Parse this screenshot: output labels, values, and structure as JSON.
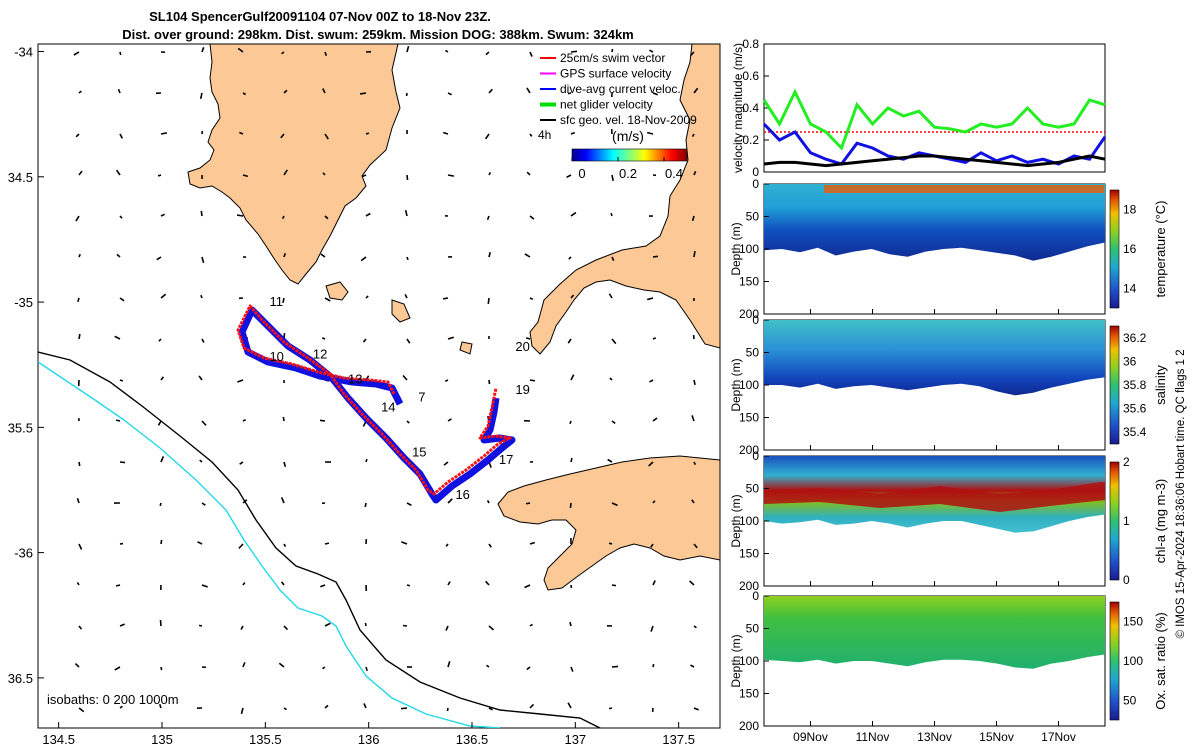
{
  "title": {
    "line1": "SL104 SpencerGulf20091104 07-Nov 00Z to 18-Nov 23Z.",
    "line2": "Dist. over ground: 298km. Dist. swum: 259km. Mission DOG: 388km. Swum: 324km"
  },
  "map": {
    "lon_ticks": [
      "134.5",
      "135",
      "135.5",
      "136",
      "136.5",
      "137",
      "137.5"
    ],
    "lat_ticks": [
      "-34",
      "34.5",
      "-35",
      "35.5",
      "-36",
      "36.5"
    ],
    "lon_range": [
      134.4,
      137.7
    ],
    "lat_range": [
      -36.7,
      -33.97
    ],
    "legend": [
      {
        "label": "25cm/s swim vector",
        "color": "#ff0000"
      },
      {
        "label": "GPS surface velocity",
        "color": "#ff00ff"
      },
      {
        "label": "dive-avg current veloc.",
        "color": "#0000ff"
      },
      {
        "label": "net glider velocity",
        "color": "#00dd00"
      },
      {
        "label": "sfc geo. vel. 18-Nov-2009",
        "color": "#000000"
      }
    ],
    "legend_extra": "4h",
    "colorbar": {
      "label": "(m/s)",
      "ticks": [
        "0",
        "0.2",
        "0.4"
      ],
      "range": [
        0,
        0.5
      ]
    },
    "isobaths": "isobaths: 0   200  1000m",
    "day_labels": [
      {
        "day": "7",
        "lon": 136.24,
        "lat": -35.38
      },
      {
        "day": "10",
        "lon": 135.52,
        "lat": -35.22
      },
      {
        "day": "11",
        "lon": 135.52,
        "lat": -35.0
      },
      {
        "day": "12",
        "lon": 135.73,
        "lat": -35.21
      },
      {
        "day": "13",
        "lon": 135.9,
        "lat": -35.31
      },
      {
        "day": "14",
        "lon": 136.06,
        "lat": -35.42
      },
      {
        "day": "15",
        "lon": 136.21,
        "lat": -35.6
      },
      {
        "day": "16",
        "lon": 136.42,
        "lat": -35.77
      },
      {
        "day": "17",
        "lon": 136.63,
        "lat": -35.63
      },
      {
        "day": "19",
        "lon": 136.71,
        "lat": -35.35
      },
      {
        "day": "20",
        "lon": 136.71,
        "lat": -35.18
      }
    ]
  },
  "right_panels": {
    "velocity": {
      "ylabel": "velocity magnitude (m/s)",
      "yticks": [
        "0",
        "0.2",
        "0.4",
        "0.6",
        "0.8"
      ],
      "ylim": [
        0,
        0.8
      ]
    },
    "temperature": {
      "ylabel": "Depth (m)",
      "cblabel": "temperature (°C)",
      "cbticks": [
        "14",
        "16",
        "18"
      ],
      "yticks": [
        "0",
        "50",
        "100",
        "150",
        "200"
      ]
    },
    "salinity": {
      "ylabel": "Depth (m)",
      "cblabel": "salinity",
      "cbticks": [
        "35.4",
        "35.6",
        "35.8",
        "36",
        "36.2"
      ],
      "yticks": [
        "0",
        "50",
        "100",
        "150",
        "200"
      ]
    },
    "chla": {
      "ylabel": "Depth (m)",
      "cblabel": "chl-a (mg m-3)",
      "cbticks": [
        "0",
        "1",
        "2"
      ],
      "yticks": [
        "0",
        "50",
        "100",
        "150",
        "200"
      ]
    },
    "oxygen": {
      "ylabel": "Depth (m)",
      "cblabel": "Ox. sat. ratio (%)",
      "cbticks": [
        "50",
        "100",
        "150"
      ],
      "yticks": [
        "0",
        "50",
        "100",
        "150",
        "200"
      ]
    },
    "xticks": [
      "09Nov",
      "11Nov",
      "13Nov",
      "15Nov",
      "17Nov"
    ]
  },
  "footer": "© IMOS 15-Apr-2024 18:36:06 Hobart time. QC flags 1  2",
  "chart_data": {
    "type": "line",
    "title": "SL104 SpencerGulf20091104 07-Nov 00Z to 18-Nov 23Z.",
    "xlabel": "",
    "ylabel": "velocity magnitude (m/s)",
    "ylim": [
      0,
      0.8
    ],
    "x": [
      7.5,
      8,
      8.5,
      9,
      9.5,
      10,
      10.5,
      11,
      11.5,
      12,
      12.5,
      13,
      13.5,
      14,
      14.5,
      15,
      15.5,
      16,
      16.5,
      17,
      17.5,
      18,
      18.5
    ],
    "series": [
      {
        "name": "25cm/s swim vector",
        "values": [
          0.25,
          0.25,
          0.25,
          0.25,
          0.25,
          0.25,
          0.25,
          0.25,
          0.25,
          0.25,
          0.25,
          0.25,
          0.25,
          0.25,
          0.25,
          0.25,
          0.25,
          0.25,
          0.25,
          0.25,
          0.25,
          0.25,
          0.25
        ]
      },
      {
        "name": "net glider velocity",
        "values": [
          0.45,
          0.3,
          0.5,
          0.3,
          0.25,
          0.15,
          0.42,
          0.3,
          0.4,
          0.35,
          0.38,
          0.28,
          0.27,
          0.25,
          0.3,
          0.28,
          0.3,
          0.4,
          0.3,
          0.28,
          0.3,
          0.45,
          0.42
        ]
      },
      {
        "name": "dive-avg current veloc.",
        "values": [
          0.3,
          0.2,
          0.25,
          0.12,
          0.08,
          0.05,
          0.18,
          0.15,
          0.1,
          0.08,
          0.12,
          0.1,
          0.08,
          0.06,
          0.12,
          0.07,
          0.1,
          0.06,
          0.08,
          0.05,
          0.1,
          0.08,
          0.22
        ]
      },
      {
        "name": "sfc geo. vel. 18-Nov-2009",
        "values": [
          0.05,
          0.06,
          0.06,
          0.05,
          0.04,
          0.05,
          0.06,
          0.07,
          0.08,
          0.09,
          0.1,
          0.1,
          0.09,
          0.08,
          0.07,
          0.06,
          0.05,
          0.04,
          0.05,
          0.06,
          0.08,
          0.1,
          0.08
        ]
      }
    ]
  }
}
